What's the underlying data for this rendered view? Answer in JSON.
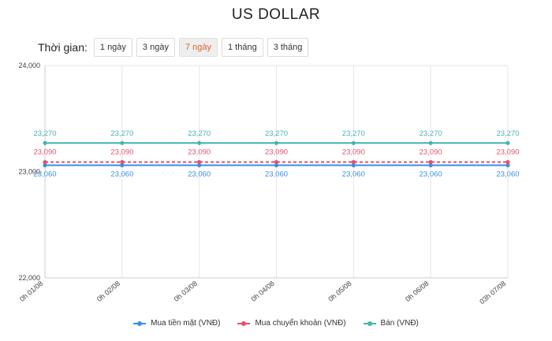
{
  "title": "US DOLLAR",
  "time_label": "Thời gian:",
  "ranges": [
    "1 ngày",
    "3 ngày",
    "7 ngày",
    "1 tháng",
    "3 tháng"
  ],
  "active_range": "7 ngày",
  "chart_data": {
    "type": "line",
    "x": [
      "0h 01/08",
      "0h 02/08",
      "0h 03/08",
      "0h 04/08",
      "0h 05/08",
      "0h 06/08",
      "03h 07/08"
    ],
    "ylim": [
      22000,
      24000
    ],
    "yticks": [
      "22,000",
      "23,000",
      "24,000"
    ],
    "ytick_values": [
      22000,
      23000,
      24000
    ],
    "grid": true,
    "legend_position": "bottom",
    "series": [
      {
        "name": "Mua tiền mặt (VNĐ)",
        "values": [
          23060,
          23060,
          23060,
          23060,
          23060,
          23060,
          23060
        ],
        "labels": [
          "23,060",
          "23,060",
          "23,060",
          "23,060",
          "23,060",
          "23,060",
          "23,060"
        ],
        "color": "#3b8fe0",
        "dashed": false
      },
      {
        "name": "Mua chuyển khoản (VNĐ)",
        "values": [
          23090,
          23090,
          23090,
          23090,
          23090,
          23090,
          23090
        ],
        "labels": [
          "23,090",
          "23,090",
          "23,090",
          "23,090",
          "23,090",
          "23,090",
          "23,090"
        ],
        "color": "#e6506e",
        "dashed": true
      },
      {
        "name": "Bán (VNĐ)",
        "values": [
          23270,
          23270,
          23270,
          23270,
          23270,
          23270,
          23270
        ],
        "labels": [
          "23,270",
          "23,270",
          "23,270",
          "23,270",
          "23,270",
          "23,270",
          "23,270"
        ],
        "color": "#45b5b0",
        "dashed": false
      }
    ]
  }
}
